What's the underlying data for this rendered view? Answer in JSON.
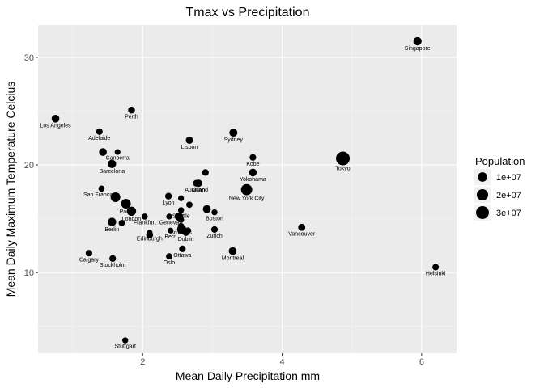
{
  "chart_data": {
    "type": "scatter",
    "title": "Tmax vs Precipitation",
    "xlabel": "Mean Daily Precipitation mm",
    "ylabel": "Mean Daily Maximum Temperature Celcius",
    "xlim": [
      0.5,
      6.5
    ],
    "ylim": [
      2.5,
      33
    ],
    "x_ticks": [
      2,
      4,
      6
    ],
    "y_ticks": [
      10,
      20,
      30
    ],
    "grid": true,
    "size_legend": {
      "title": "Population",
      "entries": [
        {
          "label": "1e+07",
          "value": 10000000
        },
        {
          "label": "2e+07",
          "value": 20000000
        },
        {
          "label": "3e+07",
          "value": 30000000
        }
      ]
    },
    "points": [
      {
        "label": "Singapore",
        "x": 5.94,
        "y": 31.5,
        "population": 5600000
      },
      {
        "label": "Los Angeles",
        "x": 0.75,
        "y": 24.3,
        "population": 4000000
      },
      {
        "label": "Perth",
        "x": 1.84,
        "y": 25.1,
        "population": 2000000
      },
      {
        "label": "Adelaide",
        "x": 1.38,
        "y": 23.1,
        "population": 1300000
      },
      {
        "label": "Lisbon",
        "x": 2.67,
        "y": 22.3,
        "population": 2800000
      },
      {
        "label": "Sydney",
        "x": 3.3,
        "y": 23.0,
        "population": 5000000
      },
      {
        "label": "Canberra",
        "x": 1.64,
        "y": 21.2,
        "population": 400000
      },
      {
        "label": "",
        "x": 1.43,
        "y": 21.2,
        "population": 4000000
      },
      {
        "label": "Kobe",
        "x": 3.58,
        "y": 20.7,
        "population": 1500000
      },
      {
        "label": "Tokyo",
        "x": 4.87,
        "y": 20.6,
        "population": 37000000
      },
      {
        "label": "Barcelona",
        "x": 1.56,
        "y": 20.1,
        "population": 5500000
      },
      {
        "label": "Yokohama",
        "x": 3.58,
        "y": 19.3,
        "population": 3700000
      },
      {
        "label": "",
        "x": 2.9,
        "y": 19.3,
        "population": 1500000
      },
      {
        "label": "Auckland",
        "x": 2.77,
        "y": 18.3,
        "population": 1600000
      },
      {
        "label": "Milan",
        "x": 2.8,
        "y": 18.3,
        "population": 3100000
      },
      {
        "label": "New York City",
        "x": 3.49,
        "y": 17.7,
        "population": 18800000
      },
      {
        "label": "San Francisco",
        "x": 1.41,
        "y": 17.8,
        "population": 800000
      },
      {
        "label": "",
        "x": 1.61,
        "y": 17.0,
        "population": 11000000
      },
      {
        "label": "Lyon",
        "x": 2.37,
        "y": 17.1,
        "population": 1700000
      },
      {
        "label": "",
        "x": 2.55,
        "y": 16.9,
        "population": 500000
      },
      {
        "label": "",
        "x": 2.67,
        "y": 16.3,
        "population": 1000000
      },
      {
        "label": "Paris",
        "x": 1.76,
        "y": 16.4,
        "population": 11000000
      },
      {
        "label": "London",
        "x": 1.84,
        "y": 15.7,
        "population": 9000000
      },
      {
        "label": "Seattle",
        "x": 2.55,
        "y": 15.8,
        "population": 700000
      },
      {
        "label": "",
        "x": 2.92,
        "y": 15.9,
        "population": 4500000
      },
      {
        "label": "Boston",
        "x": 3.03,
        "y": 15.6,
        "population": 700000
      },
      {
        "label": "Geneva",
        "x": 2.38,
        "y": 15.2,
        "population": 500000
      },
      {
        "label": "Frankfurt",
        "x": 2.03,
        "y": 15.2,
        "population": 750000
      },
      {
        "label": "",
        "x": 2.52,
        "y": 15.2,
        "population": 6000000
      },
      {
        "label": "",
        "x": 2.55,
        "y": 14.9,
        "population": 700000
      },
      {
        "label": "Berlin",
        "x": 1.56,
        "y": 14.7,
        "population": 6000000
      },
      {
        "label": "Brussels",
        "x": 2.55,
        "y": 14.3,
        "population": 1200000
      },
      {
        "label": "",
        "x": 1.7,
        "y": 14.6,
        "population": 900000
      },
      {
        "label": "Vancouver",
        "x": 4.28,
        "y": 14.2,
        "population": 2500000
      },
      {
        "label": "",
        "x": 2.56,
        "y": 14.0,
        "population": 9000000
      },
      {
        "label": "",
        "x": 2.65,
        "y": 13.9,
        "population": 1000000
      },
      {
        "label": "Bern",
        "x": 2.4,
        "y": 13.9,
        "population": 400000
      },
      {
        "label": "Zürich",
        "x": 3.03,
        "y": 14.0,
        "population": 1400000
      },
      {
        "label": "Edinburgh",
        "x": 2.1,
        "y": 13.7,
        "population": 500000
      },
      {
        "label": "",
        "x": 2.1,
        "y": 13.5,
        "population": 2000000
      },
      {
        "label": "Dublin",
        "x": 2.62,
        "y": 13.7,
        "population": 1200000
      },
      {
        "label": "Calgary",
        "x": 1.23,
        "y": 11.8,
        "population": 1500000
      },
      {
        "label": "Stockholm",
        "x": 1.57,
        "y": 11.3,
        "population": 1600000
      },
      {
        "label": "Ottawa",
        "x": 2.57,
        "y": 12.2,
        "population": 1400000
      },
      {
        "label": "Montreal",
        "x": 3.29,
        "y": 12.0,
        "population": 4200000
      },
      {
        "label": "Oslo",
        "x": 2.38,
        "y": 11.5,
        "population": 1000000
      },
      {
        "label": "Helsinki",
        "x": 6.2,
        "y": 10.5,
        "population": 1300000
      },
      {
        "label": "Stuttgart",
        "x": 1.75,
        "y": 3.7,
        "population": 600000
      }
    ]
  }
}
